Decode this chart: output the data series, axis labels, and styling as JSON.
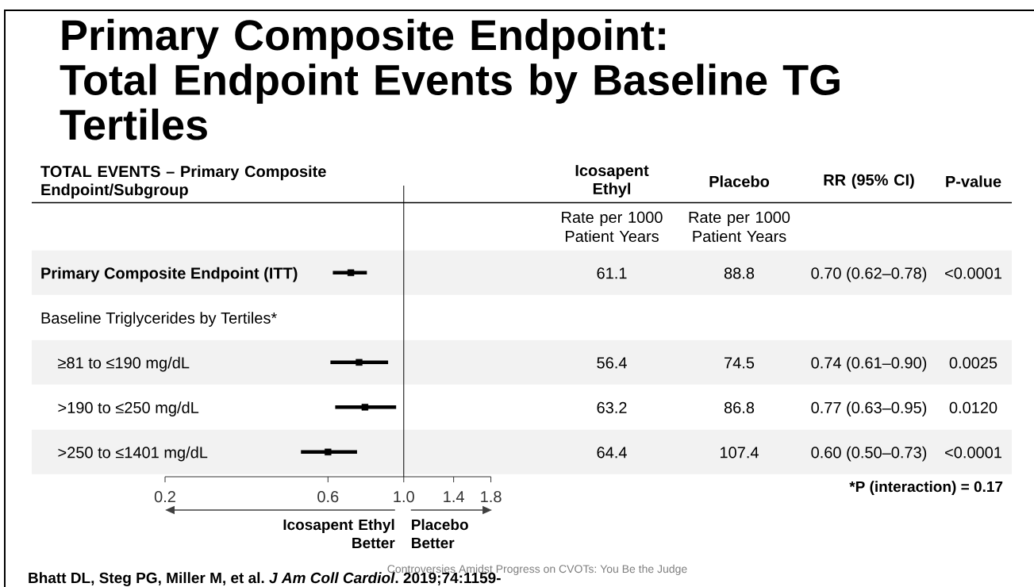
{
  "chart_data": {
    "type": "scatter",
    "title": "Primary Composite Endpoint: Total Endpoint Events by Baseline TG Tertiles",
    "ylabel": "TOTAL EVENTS – Primary Composite Endpoint/Subgroup",
    "orientation": "horizontal",
    "categories": [
      "Primary Composite Endpoint (ITT)",
      "Baseline Triglycerides by Tertiles*",
      "≥81 to ≤190 mg/dL",
      ">190 to ≤250 mg/dL",
      ">250 to ≤1401 mg/dL"
    ],
    "series": [
      {
        "color": "#000000",
        "values": [
          0.7,
          null,
          0.74,
          0.77,
          0.6
        ],
        "errors": [
          [
            0.62,
            0.78
          ],
          null,
          [
            0.61,
            0.9
          ],
          [
            0.63,
            0.95
          ],
          [
            0.5,
            0.73
          ]
        ],
        "value_labels": [
          "0.70 (0.62–0.78)",
          null,
          "0.74 (0.61–0.90)",
          "0.77 (0.63–0.95)",
          "0.60 (0.50–0.73)"
        ]
      }
    ],
    "marker": "square",
    "log": "x",
    "xlim": [
      0.2,
      1.8
    ],
    "xticks": [
      0.2,
      0.6,
      {
        "value": 1,
        "label": "1.0"
      },
      1.4,
      1.8
    ],
    "ref_lines": [
      {
        "axis": "x",
        "value": 1,
        "color": "#000000"
      }
    ],
    "annotations": [
      "Icosapent Ethyl",
      "Placebo",
      "RR (95% CI)",
      "P-value",
      "Rate per 1000 Patient Years",
      "Rate per 1000 Patient Years",
      "61.1",
      "88.8",
      "<0.0001",
      "56.4",
      "74.5",
      "0.0025",
      "63.2",
      "86.8",
      "0.0120",
      "64.4",
      "107.4",
      "<0.0001",
      "*P (interaction) = 0.17",
      "Icosapent Ethyl Better",
      "Placebo Better",
      "Bhatt DL, Steg PG, Miller M, et al. *J Am Coll Cardiol*. 2019;74:1159-",
      "Controversies Amidst Progress on CVOTs: You Be the Judge"
    ]
  }
}
